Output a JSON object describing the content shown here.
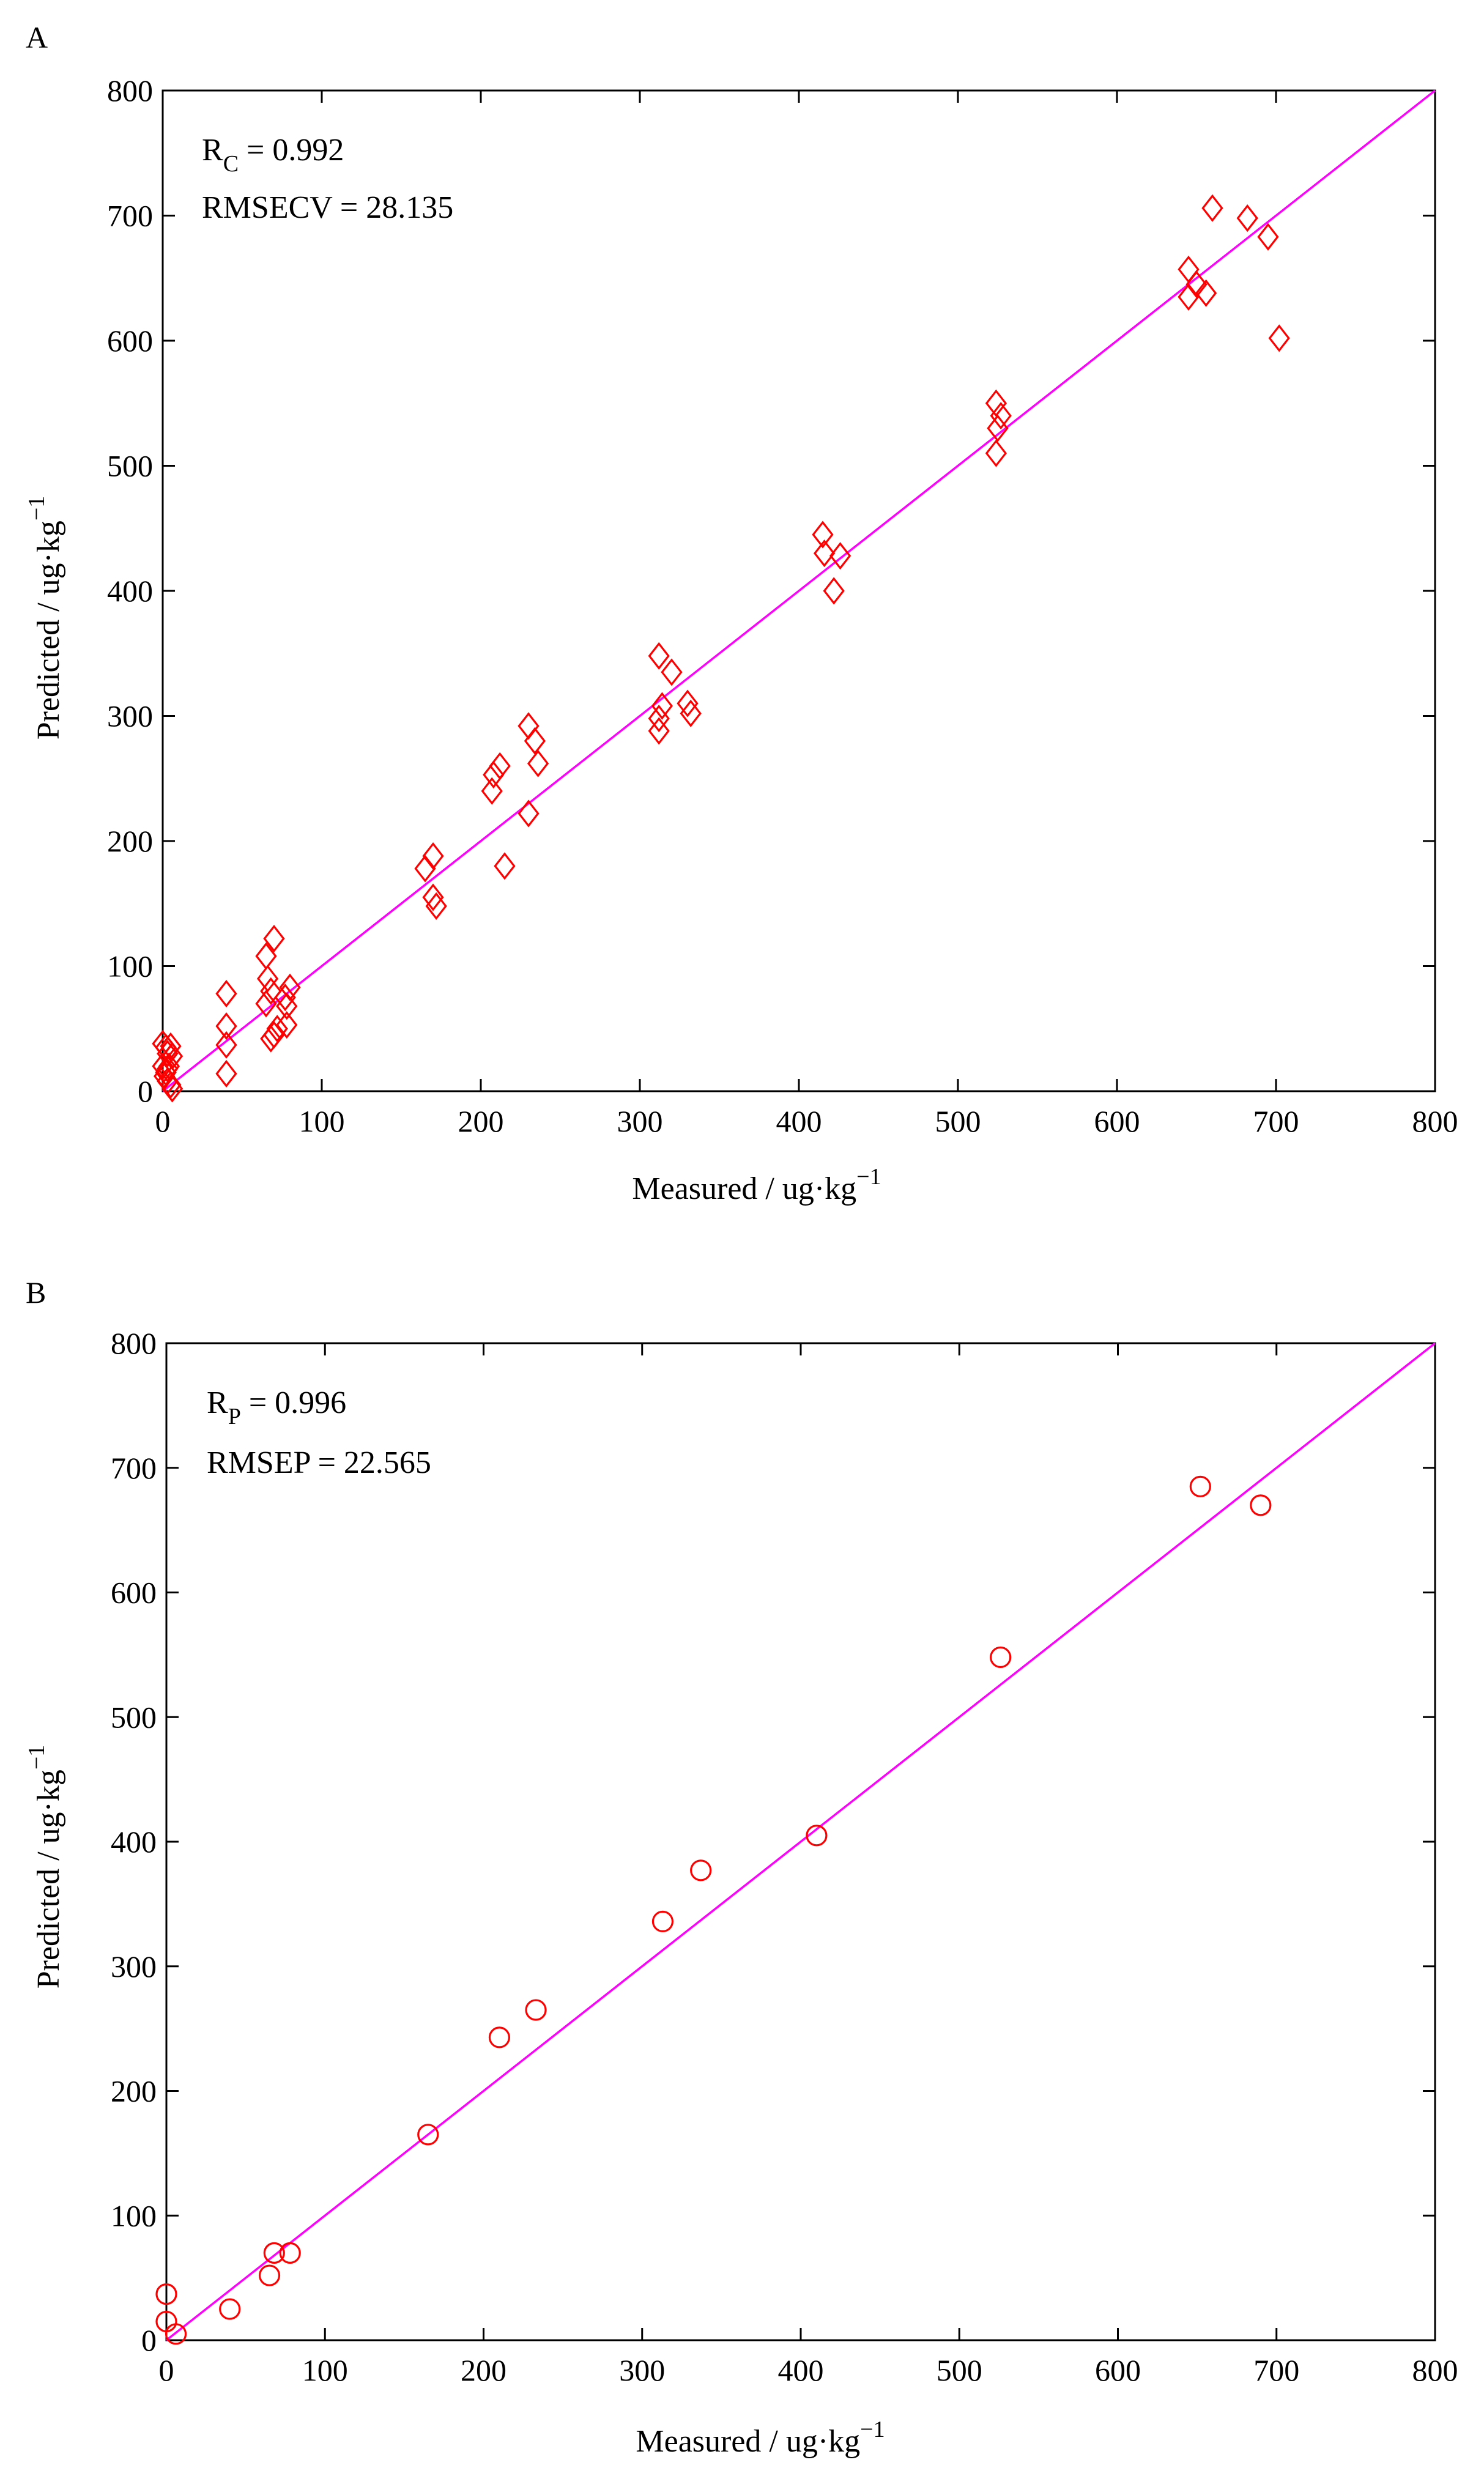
{
  "colors": {
    "marker": "#ff0000",
    "fit_line": "#ff00ff",
    "axis": "#000000",
    "background": "#ffffff"
  },
  "chart_data": [
    {
      "panel_label": "A",
      "type": "scatter",
      "marker": "diamond",
      "xlabel": "Measured / ug·kg",
      "ylabel": "Predicted / ug·kg",
      "unit_exponent": "−1",
      "xlim": [
        0,
        800
      ],
      "ylim": [
        0,
        800
      ],
      "xticks": [
        0,
        100,
        200,
        300,
        400,
        500,
        600,
        700,
        800
      ],
      "yticks": [
        0,
        100,
        200,
        300,
        400,
        500,
        600,
        700,
        800
      ],
      "fit_line": [
        [
          0,
          0
        ],
        [
          800,
          800
        ]
      ],
      "annotation": {
        "r_symbol": "R",
        "r_subscript": "C",
        "r_value": " = 0.992",
        "error_label": "RMSECV = 28.135"
      },
      "points": [
        [
          0,
          38
        ],
        [
          2,
          35
        ],
        [
          3,
          30
        ],
        [
          5,
          36
        ],
        [
          0,
          20
        ],
        [
          2,
          15
        ],
        [
          1,
          12
        ],
        [
          3,
          8
        ],
        [
          5,
          5
        ],
        [
          6,
          2
        ],
        [
          4,
          20
        ],
        [
          6,
          28
        ],
        [
          3,
          18
        ],
        [
          40,
          78
        ],
        [
          40,
          52
        ],
        [
          40,
          37
        ],
        [
          40,
          14
        ],
        [
          65,
          108
        ],
        [
          66,
          90
        ],
        [
          68,
          80
        ],
        [
          65,
          70
        ],
        [
          70,
          122
        ],
        [
          70,
          45
        ],
        [
          68,
          42
        ],
        [
          72,
          50
        ],
        [
          77,
          75
        ],
        [
          78,
          68
        ],
        [
          80,
          83
        ],
        [
          78,
          53
        ],
        [
          165,
          178
        ],
        [
          170,
          188
        ],
        [
          170,
          155
        ],
        [
          172,
          148
        ],
        [
          207,
          240
        ],
        [
          208,
          253
        ],
        [
          212,
          260
        ],
        [
          215,
          180
        ],
        [
          230,
          292
        ],
        [
          230,
          222
        ],
        [
          234,
          280
        ],
        [
          236,
          262
        ],
        [
          312,
          348
        ],
        [
          312,
          298
        ],
        [
          314,
          308
        ],
        [
          312,
          288
        ],
        [
          320,
          335
        ],
        [
          330,
          310
        ],
        [
          332,
          302
        ],
        [
          415,
          445
        ],
        [
          416,
          430
        ],
        [
          422,
          400
        ],
        [
          426,
          428
        ],
        [
          524,
          550
        ],
        [
          525,
          530
        ],
        [
          527,
          540
        ],
        [
          524,
          510
        ],
        [
          645,
          657
        ],
        [
          645,
          635
        ],
        [
          650,
          645
        ],
        [
          656,
          638
        ],
        [
          660,
          706
        ],
        [
          682,
          698
        ],
        [
          695,
          683
        ],
        [
          702,
          602
        ]
      ]
    },
    {
      "panel_label": "B",
      "type": "scatter",
      "marker": "circle",
      "xlabel": "Measured / ug·kg",
      "ylabel": "Predicted / ug·kg",
      "unit_exponent": "−1",
      "xlim": [
        0,
        800
      ],
      "ylim": [
        0,
        800
      ],
      "xticks": [
        0,
        100,
        200,
        300,
        400,
        500,
        600,
        700,
        800
      ],
      "yticks": [
        0,
        100,
        200,
        300,
        400,
        500,
        600,
        700,
        800
      ],
      "fit_line": [
        [
          0,
          0
        ],
        [
          800,
          800
        ]
      ],
      "annotation": {
        "r_symbol": "R",
        "r_subscript": "P",
        "r_value": " = 0.996",
        "error_label": "RMSEP = 22.565"
      },
      "points": [
        [
          0,
          37
        ],
        [
          0,
          15
        ],
        [
          6,
          5
        ],
        [
          40,
          25
        ],
        [
          65,
          52
        ],
        [
          68,
          70
        ],
        [
          78,
          70
        ],
        [
          165,
          165
        ],
        [
          210,
          243
        ],
        [
          233,
          265
        ],
        [
          313,
          336
        ],
        [
          337,
          377
        ],
        [
          410,
          405
        ],
        [
          526,
          548
        ],
        [
          652,
          685
        ],
        [
          690,
          670
        ]
      ]
    }
  ]
}
